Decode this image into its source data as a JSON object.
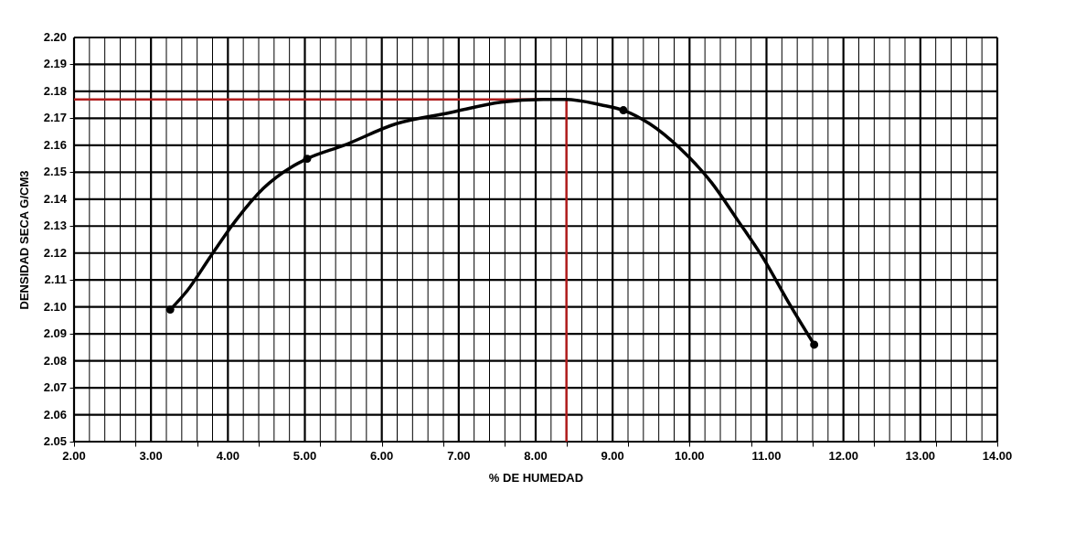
{
  "chart_data": {
    "type": "line",
    "xlabel": "% DE HUMEDAD",
    "ylabel": "DENSIDAD SECA G/CM3",
    "xlim": [
      2,
      14
    ],
    "ylim": [
      2.05,
      2.2
    ],
    "xticks": [
      {
        "value": 2,
        "label": "2.00"
      },
      {
        "value": 2.2,
        "label": null
      },
      {
        "value": 2.4,
        "label": null
      },
      {
        "value": 2.6,
        "label": null
      },
      {
        "value": 2.8,
        "label": null
      },
      {
        "value": 3,
        "label": "3.00"
      },
      {
        "value": 3.2,
        "label": null
      },
      {
        "value": 3.4,
        "label": null
      },
      {
        "value": 3.6,
        "label": null
      },
      {
        "value": 3.8,
        "label": null
      },
      {
        "value": 4,
        "label": "4.00"
      },
      {
        "value": 4.2,
        "label": null
      },
      {
        "value": 4.4,
        "label": null
      },
      {
        "value": 4.6,
        "label": null
      },
      {
        "value": 4.8,
        "label": null
      },
      {
        "value": 5,
        "label": "5.00"
      },
      {
        "value": 5.2,
        "label": null
      },
      {
        "value": 5.4,
        "label": null
      },
      {
        "value": 5.6,
        "label": null
      },
      {
        "value": 5.8,
        "label": null
      },
      {
        "value": 6,
        "label": "6.00"
      },
      {
        "value": 6.2,
        "label": null
      },
      {
        "value": 6.4,
        "label": null
      },
      {
        "value": 6.6,
        "label": null
      },
      {
        "value": 6.8,
        "label": null
      },
      {
        "value": 7,
        "label": "7.00"
      },
      {
        "value": 7.2,
        "label": null
      },
      {
        "value": 7.4,
        "label": null
      },
      {
        "value": 7.6,
        "label": null
      },
      {
        "value": 7.8,
        "label": null
      },
      {
        "value": 8,
        "label": "8.00"
      },
      {
        "value": 8.2,
        "label": null
      },
      {
        "value": 8.4,
        "label": null
      },
      {
        "value": 8.6,
        "label": null
      },
      {
        "value": 8.8,
        "label": null
      },
      {
        "value": 9,
        "label": "9.00"
      },
      {
        "value": 9.2,
        "label": null
      },
      {
        "value": 9.4,
        "label": null
      },
      {
        "value": 9.6,
        "label": null
      },
      {
        "value": 9.8,
        "label": null
      },
      {
        "value": 10,
        "label": "10.00"
      },
      {
        "value": 10.2,
        "label": null
      },
      {
        "value": 10.4,
        "label": null
      },
      {
        "value": 10.6,
        "label": null
      },
      {
        "value": 10.8,
        "label": null
      },
      {
        "value": 11,
        "label": "11.00"
      },
      {
        "value": 11.2,
        "label": null
      },
      {
        "value": 11.4,
        "label": null
      },
      {
        "value": 11.6,
        "label": null
      },
      {
        "value": 11.8,
        "label": null
      },
      {
        "value": 12,
        "label": "12.00"
      },
      {
        "value": 12.2,
        "label": null
      },
      {
        "value": 12.4,
        "label": null
      },
      {
        "value": 12.6,
        "label": null
      },
      {
        "value": 12.8,
        "label": null
      },
      {
        "value": 13,
        "label": "13.00"
      },
      {
        "value": 13.2,
        "label": null
      },
      {
        "value": 13.4,
        "label": null
      },
      {
        "value": 13.6,
        "label": null
      },
      {
        "value": 13.8,
        "label": null
      },
      {
        "value": 14,
        "label": "14.00"
      }
    ],
    "yticks": [
      2.05,
      2.06,
      2.07,
      2.08,
      2.09,
      {
        "value": 2.1,
        "label": "2.10"
      },
      2.11,
      2.12,
      2.13,
      2.14,
      2.15,
      2.16,
      2.17,
      2.18,
      2.19,
      {
        "value": 2.2,
        "label": "2.20"
      }
    ],
    "series": [
      {
        "color": "#000000",
        "marker": "none",
        "x": [
          3.25,
          3.47,
          3.78,
          4.1,
          4.46,
          4.83,
          5.03,
          5.51,
          6.19,
          6.87,
          7.55,
          8.1,
          8.39,
          8.85,
          9.14,
          9.48,
          9.87,
          10.29,
          10.63,
          10.96,
          11.3,
          11.62
        ],
        "values": [
          2.099,
          2.106,
          2.119,
          2.132,
          2.144,
          2.152,
          2.155,
          2.16,
          2.168,
          2.172,
          2.176,
          2.177,
          2.177,
          2.175,
          2.173,
          2.168,
          2.159,
          2.146,
          2.132,
          2.118,
          2.101,
          2.086
        ]
      },
      {
        "type": "scatter",
        "color": "#000000",
        "marker": "circle",
        "x": [
          3.25,
          5.03,
          9.14,
          11.62
        ],
        "values": [
          2.099,
          2.155,
          2.173,
          2.086
        ]
      }
    ],
    "ref_lines": [
      {
        "axis": "x",
        "value": 8.4,
        "color": "#b01c1c"
      },
      {
        "axis": "y",
        "value": 2.177,
        "color": "#b01c1c"
      }
    ],
    "grid": true
  }
}
